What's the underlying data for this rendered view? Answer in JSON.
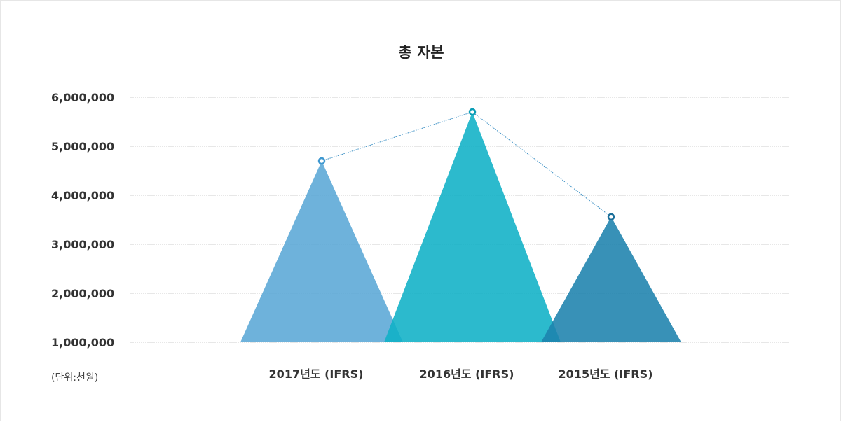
{
  "chart_data": {
    "type": "area",
    "title": "총 자본",
    "unit_label": "(단위:천원)",
    "categories": [
      "2017년도 (IFRS)",
      "2016년도 (IFRS)",
      "2015년도 (IFRS)"
    ],
    "values": [
      4700000,
      5700000,
      3560000
    ],
    "ylim": [
      1000000,
      6000000
    ],
    "yticks": [
      "6,000,000",
      "5,000,000",
      "4,000,000",
      "3,000,000",
      "2,000,000",
      "1,000,000"
    ],
    "ytick_values": [
      6000000,
      5000000,
      4000000,
      3000000,
      2000000,
      1000000
    ],
    "colors": [
      "#5aa7d6",
      "#0fb1c6",
      "#1d82ad"
    ],
    "grid": true,
    "legend": "none"
  }
}
